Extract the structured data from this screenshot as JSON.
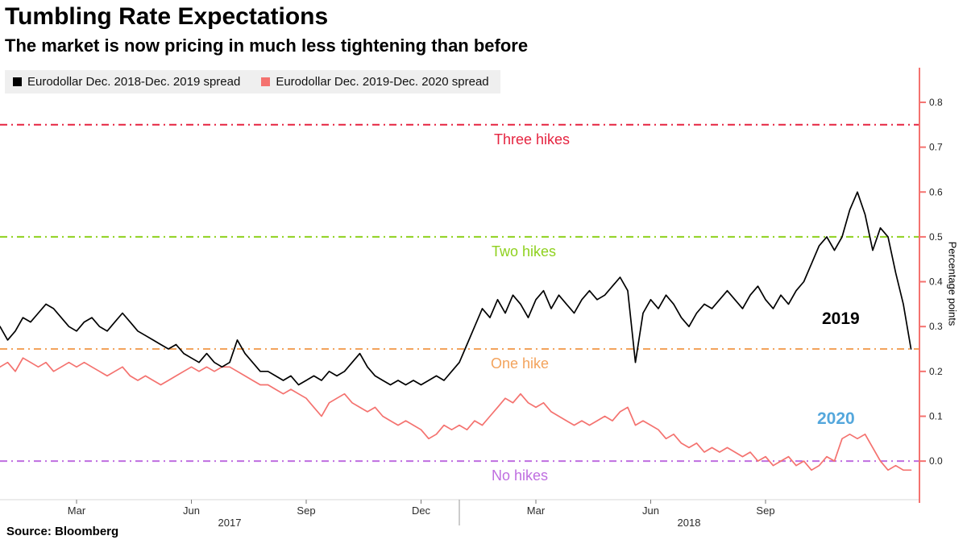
{
  "header": {
    "title": "Tumbling Rate Expectations",
    "subtitle": "The market is now pricing in much less tightening than before"
  },
  "legend": {
    "items": [
      {
        "label": "Eurodollar Dec. 2018-Dec. 2019 spread",
        "color": "#000000"
      },
      {
        "label": "Eurodollar Dec. 2019-Dec. 2020 spread",
        "color": "#f4726f"
      }
    ]
  },
  "footer": {
    "source": "Source: Bloomberg"
  },
  "chart_data": {
    "type": "line",
    "title": "Tumbling Rate Expectations",
    "xlabel": "",
    "ylabel": "Percentage points",
    "ylim": [
      -0.086,
      0.87
    ],
    "yticks": [
      0.0,
      0.1,
      0.2,
      0.3,
      0.4,
      0.5,
      0.6,
      0.7,
      0.8
    ],
    "axis_color": "#f4726f",
    "x_range": [
      "Jan 2017",
      "Dec 2018"
    ],
    "xticks": [
      {
        "month": 2,
        "label": "Mar"
      },
      {
        "month": 5,
        "label": "Jun"
      },
      {
        "month": 8,
        "label": "Sep"
      },
      {
        "month": 11,
        "label": "Dec"
      },
      {
        "month": 14,
        "label": "Mar"
      },
      {
        "month": 17,
        "label": "Jun"
      },
      {
        "month": 20,
        "label": "Sep"
      }
    ],
    "year_labels": [
      {
        "label": "2017",
        "month_center": 6
      },
      {
        "label": "2018",
        "month_center": 18
      }
    ],
    "reference_lines": [
      {
        "value": 0.75,
        "label": "Three hikes",
        "color": "#e52440"
      },
      {
        "value": 0.5,
        "label": "Two hikes",
        "color": "#8fd11e"
      },
      {
        "value": 0.25,
        "label": "One hike",
        "color": "#f3a35c"
      },
      {
        "value": 0.0,
        "label": "No hikes",
        "color": "#bf6ee0"
      }
    ],
    "series": [
      {
        "name": "2019",
        "legend_label": "Eurodollar Dec. 2018-Dec. 2019 spread",
        "line_color": "#000000",
        "label_color": "#000000",
        "values": [
          0.3,
          0.27,
          0.29,
          0.32,
          0.31,
          0.33,
          0.35,
          0.34,
          0.32,
          0.3,
          0.29,
          0.31,
          0.32,
          0.3,
          0.29,
          0.31,
          0.33,
          0.31,
          0.29,
          0.28,
          0.27,
          0.26,
          0.25,
          0.26,
          0.24,
          0.23,
          0.22,
          0.24,
          0.22,
          0.21,
          0.22,
          0.27,
          0.24,
          0.22,
          0.2,
          0.2,
          0.19,
          0.18,
          0.19,
          0.17,
          0.18,
          0.19,
          0.18,
          0.2,
          0.19,
          0.2,
          0.22,
          0.24,
          0.21,
          0.19,
          0.18,
          0.17,
          0.18,
          0.17,
          0.18,
          0.17,
          0.18,
          0.19,
          0.18,
          0.2,
          0.22,
          0.26,
          0.3,
          0.34,
          0.32,
          0.36,
          0.33,
          0.37,
          0.35,
          0.32,
          0.36,
          0.38,
          0.34,
          0.37,
          0.35,
          0.33,
          0.36,
          0.38,
          0.36,
          0.37,
          0.39,
          0.41,
          0.38,
          0.22,
          0.33,
          0.36,
          0.34,
          0.37,
          0.35,
          0.32,
          0.3,
          0.33,
          0.35,
          0.34,
          0.36,
          0.38,
          0.36,
          0.34,
          0.37,
          0.39,
          0.36,
          0.34,
          0.37,
          0.35,
          0.38,
          0.4,
          0.44,
          0.48,
          0.5,
          0.47,
          0.5,
          0.56,
          0.6,
          0.55,
          0.47,
          0.52,
          0.5,
          0.42,
          0.35,
          0.25
        ]
      },
      {
        "name": "2020",
        "legend_label": "Eurodollar Dec. 2019-Dec. 2020 spread",
        "line_color": "#f4726f",
        "label_color": "#54a7dc",
        "values": [
          0.21,
          0.22,
          0.2,
          0.23,
          0.22,
          0.21,
          0.22,
          0.2,
          0.21,
          0.22,
          0.21,
          0.22,
          0.21,
          0.2,
          0.19,
          0.2,
          0.21,
          0.19,
          0.18,
          0.19,
          0.18,
          0.17,
          0.18,
          0.19,
          0.2,
          0.21,
          0.2,
          0.21,
          0.2,
          0.21,
          0.21,
          0.2,
          0.19,
          0.18,
          0.17,
          0.17,
          0.16,
          0.15,
          0.16,
          0.15,
          0.14,
          0.12,
          0.1,
          0.13,
          0.14,
          0.15,
          0.13,
          0.12,
          0.11,
          0.12,
          0.1,
          0.09,
          0.08,
          0.09,
          0.08,
          0.07,
          0.05,
          0.06,
          0.08,
          0.07,
          0.08,
          0.07,
          0.09,
          0.08,
          0.1,
          0.12,
          0.14,
          0.13,
          0.15,
          0.13,
          0.12,
          0.13,
          0.11,
          0.1,
          0.09,
          0.08,
          0.09,
          0.08,
          0.09,
          0.1,
          0.09,
          0.11,
          0.12,
          0.08,
          0.09,
          0.08,
          0.07,
          0.05,
          0.06,
          0.04,
          0.03,
          0.04,
          0.02,
          0.03,
          0.02,
          0.03,
          0.02,
          0.01,
          0.02,
          0.0,
          0.01,
          -0.01,
          0.0,
          0.01,
          -0.01,
          0.0,
          -0.02,
          -0.01,
          0.01,
          0.0,
          0.05,
          0.06,
          0.05,
          0.06,
          0.03,
          0.0,
          -0.02,
          -0.01,
          -0.02,
          -0.02
        ]
      }
    ]
  }
}
